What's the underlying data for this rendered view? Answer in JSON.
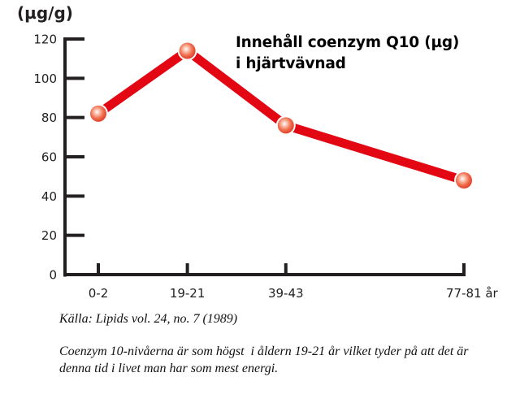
{
  "chart_data": {
    "type": "line",
    "title": "Innehåll coenzym Q10 (µg) i hjärtvävnad",
    "title_lines": [
      "Innehåll coenzym Q10 (µg)",
      "i hjärtvävnad"
    ],
    "ylabel": "(µg/g)",
    "xlabel": "år",
    "categories": [
      "0-2",
      "19-21",
      "39-43",
      "77-81"
    ],
    "x_positions_years": [
      1,
      20,
      41,
      79
    ],
    "x_tick_labels": [
      "0-2",
      "19-21",
      "39-43",
      "77-81 år"
    ],
    "series": [
      {
        "name": "Coenzym Q10",
        "values": [
          82,
          114,
          76,
          48
        ],
        "color": "#e30613"
      }
    ],
    "ylim": [
      0,
      120
    ],
    "y_ticks": [
      0,
      20,
      40,
      60,
      80,
      100,
      120
    ],
    "grid": false,
    "legend": "none"
  },
  "colors": {
    "line": "#e30613",
    "axis": "#231f20",
    "marker": "#ee5a3c"
  },
  "caption": {
    "source": "Källa: Lipids vol. 24, no. 7 (1989)",
    "note": "Coenzym 10-nivåerna är som högst  i åldern 19-21 år vilket tyder på att det är denna tid i livet man har som mest energi."
  }
}
